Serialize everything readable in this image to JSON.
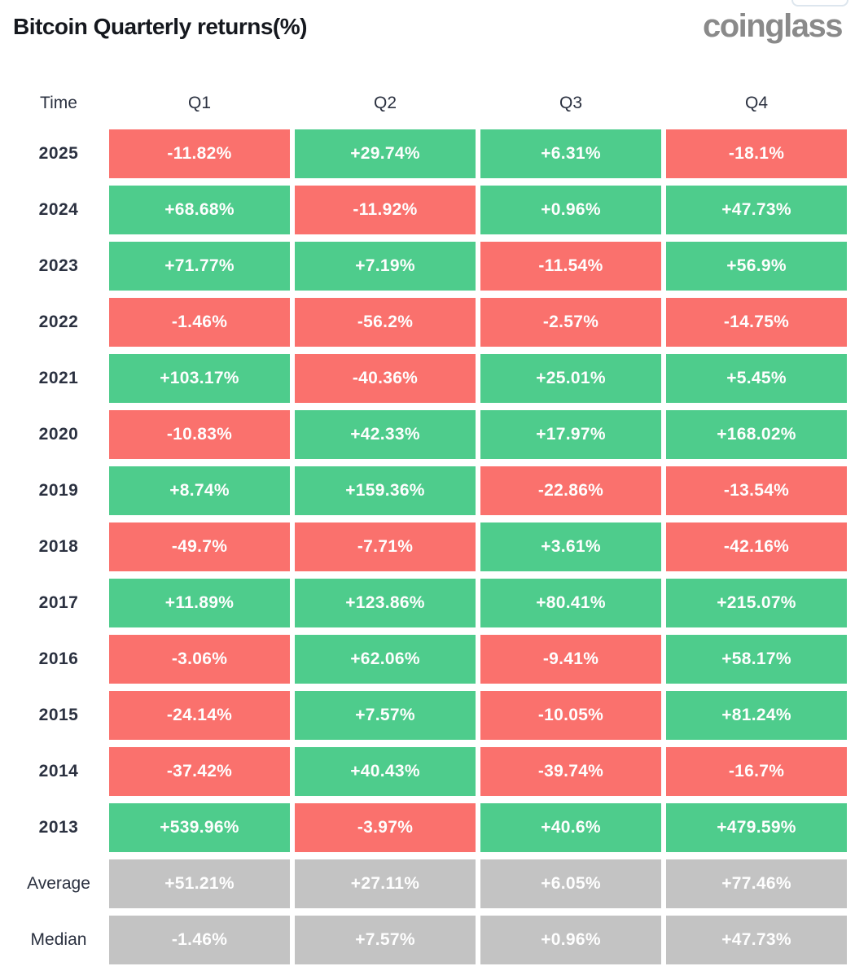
{
  "header": {
    "title": "Bitcoin Quarterly returns(%)",
    "logo": "coinglass"
  },
  "table": {
    "columns": [
      "Time",
      "Q1",
      "Q2",
      "Q3",
      "Q4"
    ],
    "colors": {
      "positive": "#4ecc8c",
      "negative": "#fa716d",
      "summary": "#c3c3c3",
      "label_text": "#2b3140",
      "cell_text": "#fefefe",
      "logo_gray": "#8a8a8a"
    },
    "rows": [
      {
        "label": "2025",
        "type": "year",
        "values": [
          "-11.82%",
          "+29.74%",
          "+6.31%",
          "-18.1%"
        ]
      },
      {
        "label": "2024",
        "type": "year",
        "values": [
          "+68.68%",
          "-11.92%",
          "+0.96%",
          "+47.73%"
        ]
      },
      {
        "label": "2023",
        "type": "year",
        "values": [
          "+71.77%",
          "+7.19%",
          "-11.54%",
          "+56.9%"
        ]
      },
      {
        "label": "2022",
        "type": "year",
        "values": [
          "-1.46%",
          "-56.2%",
          "-2.57%",
          "-14.75%"
        ]
      },
      {
        "label": "2021",
        "type": "year",
        "values": [
          "+103.17%",
          "-40.36%",
          "+25.01%",
          "+5.45%"
        ]
      },
      {
        "label": "2020",
        "type": "year",
        "values": [
          "-10.83%",
          "+42.33%",
          "+17.97%",
          "+168.02%"
        ]
      },
      {
        "label": "2019",
        "type": "year",
        "values": [
          "+8.74%",
          "+159.36%",
          "-22.86%",
          "-13.54%"
        ]
      },
      {
        "label": "2018",
        "type": "year",
        "values": [
          "-49.7%",
          "-7.71%",
          "+3.61%",
          "-42.16%"
        ]
      },
      {
        "label": "2017",
        "type": "year",
        "values": [
          "+11.89%",
          "+123.86%",
          "+80.41%",
          "+215.07%"
        ]
      },
      {
        "label": "2016",
        "type": "year",
        "values": [
          "-3.06%",
          "+62.06%",
          "-9.41%",
          "+58.17%"
        ]
      },
      {
        "label": "2015",
        "type": "year",
        "values": [
          "-24.14%",
          "+7.57%",
          "-10.05%",
          "+81.24%"
        ]
      },
      {
        "label": "2014",
        "type": "year",
        "values": [
          "-37.42%",
          "+40.43%",
          "-39.74%",
          "-16.7%"
        ]
      },
      {
        "label": "2013",
        "type": "year",
        "values": [
          "+539.96%",
          "-3.97%",
          "+40.6%",
          "+479.59%"
        ]
      },
      {
        "label": "Average",
        "type": "summary",
        "values": [
          "+51.21%",
          "+27.11%",
          "+6.05%",
          "+77.46%"
        ]
      },
      {
        "label": "Median",
        "type": "summary",
        "values": [
          "-1.46%",
          "+7.57%",
          "+0.96%",
          "+47.73%"
        ]
      }
    ]
  },
  "chart_data": {
    "type": "table",
    "title": "Bitcoin Quarterly returns(%)",
    "columns": [
      "Q1",
      "Q2",
      "Q3",
      "Q4"
    ],
    "row_labels": [
      "2025",
      "2024",
      "2023",
      "2022",
      "2021",
      "2020",
      "2019",
      "2018",
      "2017",
      "2016",
      "2015",
      "2014",
      "2013",
      "Average",
      "Median"
    ],
    "values": [
      [
        -11.82,
        29.74,
        6.31,
        -18.1
      ],
      [
        68.68,
        -11.92,
        0.96,
        47.73
      ],
      [
        71.77,
        7.19,
        -11.54,
        56.9
      ],
      [
        -1.46,
        -56.2,
        -2.57,
        -14.75
      ],
      [
        103.17,
        -40.36,
        25.01,
        5.45
      ],
      [
        -10.83,
        42.33,
        17.97,
        168.02
      ],
      [
        8.74,
        159.36,
        -22.86,
        -13.54
      ],
      [
        -49.7,
        -7.71,
        3.61,
        -42.16
      ],
      [
        11.89,
        123.86,
        80.41,
        215.07
      ],
      [
        -3.06,
        62.06,
        -9.41,
        58.17
      ],
      [
        -24.14,
        7.57,
        -10.05,
        81.24
      ],
      [
        -37.42,
        40.43,
        -39.74,
        -16.7
      ],
      [
        539.96,
        -3.97,
        40.6,
        479.59
      ],
      [
        51.21,
        27.11,
        6.05,
        77.46
      ],
      [
        -1.46,
        7.57,
        0.96,
        47.73
      ]
    ],
    "color_coding": "green = positive return, red = negative return, gray = Average/Median summary rows",
    "legend_position": "none",
    "grid": false
  }
}
